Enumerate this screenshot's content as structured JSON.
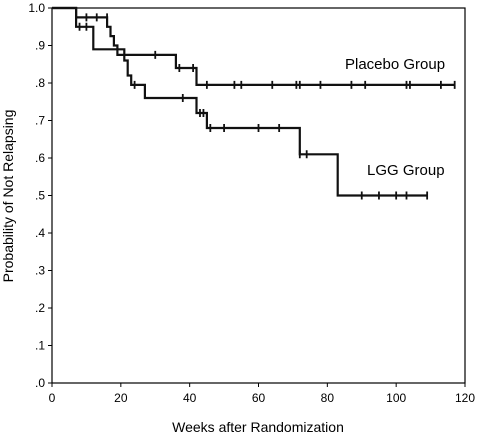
{
  "chart_data": {
    "type": "line",
    "title": "",
    "xlabel": "Weeks after Randomization",
    "ylabel": "Probability of Not Relapsing",
    "xlim": [
      0,
      120
    ],
    "ylim": [
      0,
      1.0
    ],
    "x_ticks": [
      "0",
      "20",
      "40",
      "60",
      "80",
      "100",
      "120"
    ],
    "y_ticks": [
      ".0",
      ".1",
      ".2",
      ".3",
      ".4",
      ".5",
      ".6",
      ".7",
      ".8",
      ".9",
      "1.0"
    ],
    "grid": false,
    "series": [
      {
        "name": "Placebo Group",
        "steps": [
          [
            0,
            1.0
          ],
          [
            7,
            1.0
          ],
          [
            7,
            0.975
          ],
          [
            16,
            0.975
          ],
          [
            16,
            0.95
          ],
          [
            17,
            0.95
          ],
          [
            17,
            0.925
          ],
          [
            18,
            0.925
          ],
          [
            18,
            0.9
          ],
          [
            19,
            0.9
          ],
          [
            19,
            0.875
          ],
          [
            36,
            0.875
          ],
          [
            36,
            0.84
          ],
          [
            42,
            0.84
          ],
          [
            42,
            0.795
          ],
          [
            117,
            0.795
          ]
        ],
        "censored": [
          [
            10,
            0.975
          ],
          [
            13,
            0.975
          ],
          [
            16,
            0.975
          ],
          [
            30,
            0.875
          ],
          [
            37,
            0.84
          ],
          [
            41,
            0.84
          ],
          [
            45,
            0.795
          ],
          [
            53,
            0.795
          ],
          [
            55,
            0.795
          ],
          [
            64,
            0.795
          ],
          [
            71,
            0.795
          ],
          [
            72,
            0.795
          ],
          [
            78,
            0.795
          ],
          [
            87,
            0.795
          ],
          [
            91,
            0.795
          ],
          [
            103,
            0.795
          ],
          [
            104,
            0.795
          ],
          [
            113,
            0.795
          ],
          [
            117,
            0.795
          ]
        ]
      },
      {
        "name": "LGG Group",
        "steps": [
          [
            0,
            1.0
          ],
          [
            7,
            1.0
          ],
          [
            7,
            0.95
          ],
          [
            12,
            0.95
          ],
          [
            12,
            0.89
          ],
          [
            21,
            0.89
          ],
          [
            21,
            0.86
          ],
          [
            22,
            0.86
          ],
          [
            22,
            0.82
          ],
          [
            23,
            0.82
          ],
          [
            23,
            0.795
          ],
          [
            27,
            0.795
          ],
          [
            27,
            0.76
          ],
          [
            42,
            0.76
          ],
          [
            42,
            0.72
          ],
          [
            45,
            0.72
          ],
          [
            45,
            0.68
          ],
          [
            72,
            0.68
          ],
          [
            72,
            0.61
          ],
          [
            83,
            0.61
          ],
          [
            83,
            0.5
          ],
          [
            109,
            0.5
          ]
        ],
        "censored": [
          [
            8,
            0.95
          ],
          [
            10,
            0.95
          ],
          [
            24,
            0.795
          ],
          [
            38,
            0.76
          ],
          [
            43,
            0.72
          ],
          [
            44,
            0.72
          ],
          [
            46,
            0.68
          ],
          [
            50,
            0.68
          ],
          [
            60,
            0.68
          ],
          [
            66,
            0.68
          ],
          [
            72,
            0.61
          ],
          [
            74,
            0.61
          ],
          [
            90,
            0.5
          ],
          [
            95,
            0.5
          ],
          [
            100,
            0.5
          ],
          [
            103,
            0.5
          ],
          [
            109,
            0.5
          ]
        ]
      }
    ]
  }
}
